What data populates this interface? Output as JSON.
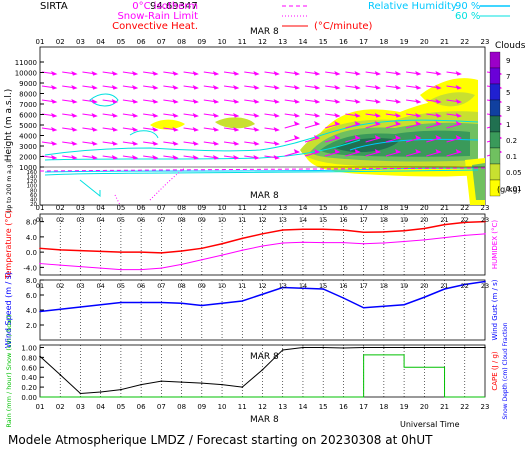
{
  "header": {
    "site": "SIRTA",
    "coord": "94.69347",
    "legend_items": [
      {
        "label": "0°C isotherm",
        "color": "#ff00ff",
        "dash": "4,3"
      },
      {
        "label": "Snow-Rain Limit",
        "color": "#ff00ff",
        "dash": "1,2"
      },
      {
        "label": "Convective Heat.",
        "color": "#ff0000",
        "dash": "",
        "unit": "(°C/minute)"
      }
    ],
    "rh_title": "Relative Humidity",
    "rh_levels": [
      "90 %",
      "60 %"
    ],
    "rh_colors": [
      "#00c8ff",
      "#00e0e0"
    ]
  },
  "hours": [
    "01",
    "02",
    "03",
    "04",
    "05",
    "06",
    "07",
    "08",
    "09",
    "10",
    "11",
    "12",
    "13",
    "14",
    "15",
    "16",
    "17",
    "18",
    "19",
    "20",
    "21",
    "22",
    "23"
  ],
  "date_label": "MAR  8",
  "colors": {
    "magenta": "#ff00ff",
    "red": "#ff0000",
    "blue": "#0000ff",
    "green": "#00c000",
    "black": "#000000",
    "cyan": "#00e0e0"
  },
  "clouds_panel": {
    "title": "Clouds",
    "unit": "(g/kg)",
    "ylabel": "Height (m a.s.l.)",
    "ylabel_low": "Up to 200 m a.g.l.",
    "yticks": [
      "11000",
      "10000",
      "9000",
      "8000",
      "7000",
      "6000",
      "5000",
      "4000",
      "3000",
      "2000",
      "1000",
      "160",
      "140",
      "120",
      "100",
      "80",
      "60",
      "40",
      "20"
    ],
    "colorbar": [
      {
        "label": "9",
        "color": "#9b00c8"
      },
      {
        "label": "7",
        "color": "#6a00d8"
      },
      {
        "label": "5",
        "color": "#2020d0"
      },
      {
        "label": "3",
        "color": "#1040a0"
      },
      {
        "label": "1",
        "color": "#207050"
      },
      {
        "label": "0.2",
        "color": "#3a9a5a"
      },
      {
        "label": "0.1",
        "color": "#70c060"
      },
      {
        "label": "0.05",
        "color": "#c8e030"
      },
      {
        "label": "0.01",
        "color": "#ffff00"
      }
    ]
  },
  "chart_data": [
    {
      "type": "line",
      "title": "",
      "ylabel": "Temperature (°C)",
      "ylabel_right": "HUMIDEX (°C)",
      "yticks": [
        "8.0",
        "4.0",
        "0.0",
        "-4.0"
      ],
      "ylim": [
        -6,
        10
      ],
      "x": [
        "01",
        "02",
        "03",
        "04",
        "05",
        "06",
        "07",
        "08",
        "09",
        "10",
        "11",
        "12",
        "13",
        "14",
        "15",
        "16",
        "17",
        "18",
        "19",
        "20",
        "21",
        "22",
        "23"
      ],
      "series": [
        {
          "values": [
            1.0,
            0.6,
            0.4,
            0.2,
            0.0,
            0.0,
            -0.2,
            0.3,
            1.0,
            2.2,
            3.6,
            4.8,
            5.8,
            6.0,
            6.0,
            5.8,
            5.2,
            5.3,
            5.6,
            6.2,
            7.2,
            7.8,
            8.0
          ],
          "color": "#ff0000"
        },
        {
          "values": [
            -3.0,
            -3.4,
            -3.8,
            -4.2,
            -4.6,
            -4.6,
            -4.2,
            -3.2,
            -2.0,
            -0.8,
            0.5,
            1.6,
            2.4,
            2.6,
            2.5,
            2.5,
            2.2,
            2.4,
            2.8,
            3.2,
            3.8,
            4.4,
            4.8
          ],
          "color": "#ff00ff"
        }
      ]
    },
    {
      "type": "line",
      "title": "",
      "ylabel": "Wind Speed (m / s)",
      "ylabel_right": "Wind Gust (m / s)",
      "yticks": [
        "8.0",
        "6.0",
        "4.0",
        "2.0"
      ],
      "ylim": [
        0,
        8
      ],
      "x": [
        "01",
        "02",
        "03",
        "04",
        "05",
        "06",
        "07",
        "08",
        "09",
        "10",
        "11",
        "12",
        "13",
        "14",
        "15",
        "16",
        "17",
        "18",
        "19",
        "20",
        "21",
        "22",
        "23"
      ],
      "series": [
        {
          "values": [
            3.8,
            4.1,
            4.4,
            4.7,
            5.0,
            5.0,
            5.0,
            4.9,
            4.6,
            4.9,
            5.2,
            6.1,
            7.0,
            6.9,
            6.8,
            5.6,
            4.3,
            4.5,
            4.7,
            5.7,
            6.8,
            7.4,
            7.8
          ],
          "color": "#0000ff"
        }
      ]
    },
    {
      "type": "line",
      "title": "",
      "ylabel": "Rain (mm / hour) Snow (cm / hour)",
      "ylabel_right": "CAPE (J / g)",
      "ylabel_right2": "Snow Depth (cm) Cloud Fraction",
      "yticks": [
        "1.00",
        "0.80",
        "0.60",
        "0.40",
        "0.20",
        "0.00"
      ],
      "ylim": [
        0,
        1.05
      ],
      "x": [
        "01",
        "02",
        "03",
        "04",
        "05",
        "06",
        "07",
        "08",
        "09",
        "10",
        "11",
        "12",
        "13",
        "14",
        "15",
        "16",
        "17",
        "18",
        "19",
        "20",
        "21",
        "22",
        "23"
      ],
      "series": [
        {
          "values": [
            0.82,
            0.45,
            0.07,
            0.1,
            0.15,
            0.25,
            0.32,
            0.3,
            0.28,
            0.25,
            0.2,
            0.55,
            0.95,
            1.0,
            1.0,
            0.99,
            1.0,
            1.0,
            1.0,
            1.0,
            1.0,
            1.0,
            1.0
          ],
          "color": "#000000"
        },
        {
          "values": [
            0,
            0,
            0,
            0,
            0,
            0,
            0,
            0,
            0,
            0,
            0,
            0,
            0,
            0,
            0,
            0,
            0.85,
            0.85,
            0.6,
            0.6,
            0,
            0,
            0
          ],
          "color": "#00c000"
        }
      ]
    }
  ],
  "footer": {
    "xlabel": "Universal Time",
    "title": "Modele Atmospherique LMDZ / Forecast starting on 20230308 at 0hUT"
  }
}
